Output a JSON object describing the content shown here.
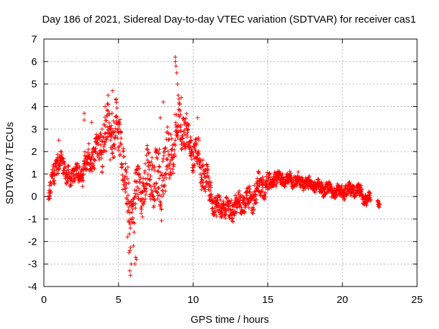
{
  "chart_data": {
    "type": "scatter",
    "title": "Day 186 of 2021, Sidereal Day-to-day VTEC variation (SDTVAR) for receiver cas1",
    "xlabel": "GPS time / hours",
    "ylabel": "SDTVAR / TECUs",
    "xlim": [
      0,
      25
    ],
    "ylim": [
      -4,
      7
    ],
    "xticks": [
      "0",
      "5",
      "10",
      "15",
      "20",
      "25"
    ],
    "yticks": [
      "-4",
      "-3",
      "-2",
      "-1",
      "0",
      "1",
      "2",
      "3",
      "4",
      "5",
      "6",
      "7"
    ],
    "grid": true,
    "marker": "+",
    "color": "#ff0000",
    "series": [
      {
        "name": "SDTVAR",
        "profile": [
          [
            0.3,
            -0.3,
            0.4
          ],
          [
            0.5,
            1.0,
            0.5
          ],
          [
            0.8,
            1.0,
            0.6
          ],
          [
            1.0,
            1.5,
            0.5
          ],
          [
            1.2,
            1.8,
            0.4
          ],
          [
            1.5,
            0.8,
            0.5
          ],
          [
            2.0,
            1.0,
            0.4
          ],
          [
            2.5,
            1.0,
            0.5
          ],
          [
            2.8,
            1.5,
            0.6
          ],
          [
            3.2,
            1.8,
            0.7
          ],
          [
            3.6,
            2.0,
            0.8
          ],
          [
            4.0,
            2.5,
            1.0
          ],
          [
            4.4,
            3.0,
            1.2
          ],
          [
            4.8,
            2.8,
            1.2
          ],
          [
            5.1,
            2.5,
            1.2
          ],
          [
            5.4,
            1.0,
            1.2
          ],
          [
            5.7,
            -1.0,
            1.5
          ],
          [
            6.0,
            -0.5,
            1.2
          ],
          [
            6.3,
            0.5,
            1.0
          ],
          [
            6.7,
            0.5,
            1.2
          ],
          [
            7.0,
            0.8,
            1.2
          ],
          [
            7.4,
            1.0,
            1.5
          ],
          [
            7.8,
            0.5,
            1.5
          ],
          [
            8.2,
            1.5,
            1.2
          ],
          [
            8.6,
            2.0,
            1.2
          ],
          [
            9.0,
            3.2,
            1.0
          ],
          [
            9.4,
            3.0,
            1.0
          ],
          [
            9.8,
            2.2,
            0.8
          ],
          [
            10.2,
            2.0,
            0.8
          ],
          [
            10.6,
            1.2,
            0.8
          ],
          [
            11.0,
            0.5,
            0.6
          ],
          [
            11.5,
            -0.5,
            0.6
          ],
          [
            12.0,
            -0.5,
            0.5
          ],
          [
            12.5,
            -0.6,
            0.5
          ],
          [
            13.0,
            -0.3,
            0.5
          ],
          [
            13.5,
            -0.2,
            0.5
          ],
          [
            14.0,
            0.0,
            0.6
          ],
          [
            14.5,
            0.4,
            0.6
          ],
          [
            15.0,
            0.6,
            0.5
          ],
          [
            15.5,
            0.8,
            0.4
          ],
          [
            16.0,
            0.8,
            0.3
          ],
          [
            17.0,
            0.7,
            0.3
          ],
          [
            18.0,
            0.5,
            0.3
          ],
          [
            19.0,
            0.3,
            0.3
          ],
          [
            20.0,
            0.2,
            0.3
          ],
          [
            20.8,
            0.3,
            0.3
          ],
          [
            21.2,
            0.2,
            0.3
          ],
          [
            21.7,
            -0.2,
            0.3
          ],
          [
            22.1,
            0.0,
            0.2
          ],
          [
            22.5,
            -0.5,
            0.2
          ]
        ],
        "gaps": [
          [
            21.9,
            22.35
          ]
        ],
        "outliers": [
          [
            2.7,
            3.7
          ],
          [
            2.7,
            3.4
          ],
          [
            1.0,
            2.5
          ],
          [
            3.9,
            3.0
          ],
          [
            4.6,
            4.7
          ],
          [
            4.3,
            4.5
          ],
          [
            8.8,
            6.2
          ],
          [
            8.8,
            6.0
          ],
          [
            8.85,
            5.8
          ],
          [
            8.9,
            5.5
          ],
          [
            8.95,
            5.0
          ],
          [
            9.2,
            4.4
          ],
          [
            9.1,
            4.1
          ],
          [
            8.0,
            4.2
          ],
          [
            7.8,
            3.5
          ],
          [
            10.3,
            3.5
          ],
          [
            5.8,
            -3.5
          ],
          [
            5.75,
            -3.3
          ],
          [
            5.85,
            -3.0
          ],
          [
            6.1,
            -3.0
          ],
          [
            6.2,
            -2.8
          ],
          [
            6.15,
            -2.7
          ],
          [
            5.7,
            -2.5
          ],
          [
            5.6,
            -1.8
          ],
          [
            6.0,
            -2.2
          ],
          [
            3.2,
            3.3
          ],
          [
            4.1,
            4.0
          ],
          [
            9.0,
            4.5
          ]
        ]
      }
    ]
  }
}
